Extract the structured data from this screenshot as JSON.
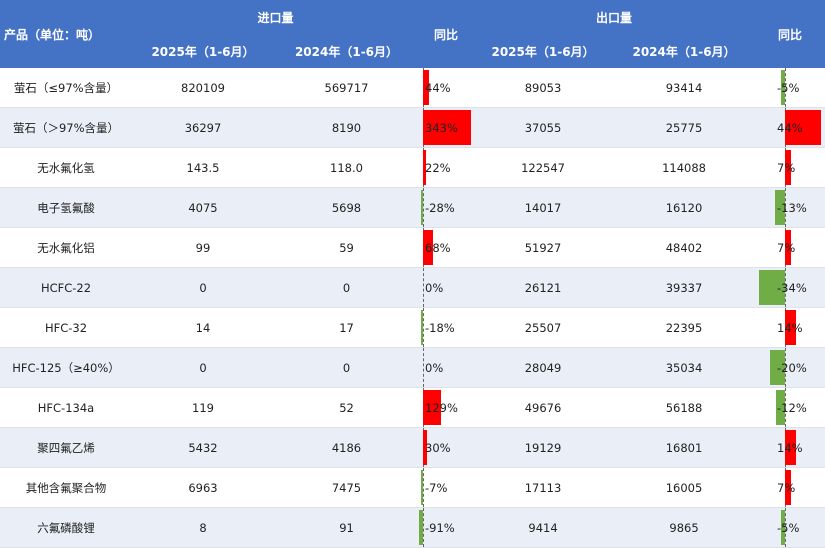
{
  "header": {
    "product_label": "产品（单位：吨）",
    "import_group": "进口量",
    "export_group": "出口量",
    "yoy_label": "同比",
    "year_2025": "2025年（1-6月）",
    "year_2024": "2024年（1-6月）"
  },
  "colors": {
    "header_bg": "#4472C4",
    "alt_row": "#E9EEF7",
    "positive": "#FF0000",
    "negative": "#70AD47"
  },
  "rows": [
    {
      "product": "萤石（≤97%含量）",
      "imp2025": "820109",
      "imp2024": "569717",
      "imp_yoy": "44%",
      "imp_yoy_value": 44,
      "exp2025": "89053",
      "exp2024": "93414",
      "exp_yoy": "-5%",
      "exp_yoy_value": -5
    },
    {
      "product": "萤石（＞97%含量）",
      "imp2025": "36297",
      "imp2024": "8190",
      "imp_yoy": "343%",
      "imp_yoy_value": 343,
      "exp2025": "37055",
      "exp2024": "25775",
      "exp_yoy": "44%",
      "exp_yoy_value": 44
    },
    {
      "product": "无水氟化氢",
      "imp2025": "143.5",
      "imp2024": "118.0",
      "imp_yoy": "22%",
      "imp_yoy_value": 22,
      "exp2025": "122547",
      "exp2024": "114088",
      "exp_yoy": "7%",
      "exp_yoy_value": 7
    },
    {
      "product": "电子氢氟酸",
      "imp2025": "4075",
      "imp2024": "5698",
      "imp_yoy": "-28%",
      "imp_yoy_value": -28,
      "exp2025": "14017",
      "exp2024": "16120",
      "exp_yoy": "-13%",
      "exp_yoy_value": -13
    },
    {
      "product": "无水氟化铝",
      "imp2025": "99",
      "imp2024": "59",
      "imp_yoy": "68%",
      "imp_yoy_value": 68,
      "exp2025": "51927",
      "exp2024": "48402",
      "exp_yoy": "7%",
      "exp_yoy_value": 7
    },
    {
      "product": "HCFC-22",
      "imp2025": "0",
      "imp2024": "0",
      "imp_yoy": "0%",
      "imp_yoy_value": 0,
      "exp2025": "26121",
      "exp2024": "39337",
      "exp_yoy": "-34%",
      "exp_yoy_value": -34
    },
    {
      "product": "HFC-32",
      "imp2025": "14",
      "imp2024": "17",
      "imp_yoy": "-18%",
      "imp_yoy_value": -18,
      "exp2025": "25507",
      "exp2024": "22395",
      "exp_yoy": "14%",
      "exp_yoy_value": 14
    },
    {
      "product": "HFC-125（≥40%）",
      "imp2025": "0",
      "imp2024": "0",
      "imp_yoy": "0%",
      "imp_yoy_value": 0,
      "exp2025": "28049",
      "exp2024": "35034",
      "exp_yoy": "-20%",
      "exp_yoy_value": -20
    },
    {
      "product": "HFC-134a",
      "imp2025": "119",
      "imp2024": "52",
      "imp_yoy": "129%",
      "imp_yoy_value": 129,
      "exp2025": "49676",
      "exp2024": "56188",
      "exp_yoy": "-12%",
      "exp_yoy_value": -12
    },
    {
      "product": "聚四氟乙烯",
      "imp2025": "5432",
      "imp2024": "4186",
      "imp_yoy": "30%",
      "imp_yoy_value": 30,
      "exp2025": "19129",
      "exp2024": "16801",
      "exp_yoy": "14%",
      "exp_yoy_value": 14
    },
    {
      "product": "其他含氟聚合物",
      "imp2025": "6963",
      "imp2024": "7475",
      "imp_yoy": "-7%",
      "imp_yoy_value": -7,
      "exp2025": "17113",
      "exp2024": "16005",
      "exp_yoy": "7%",
      "exp_yoy_value": 7
    },
    {
      "product": "六氟磷酸锂",
      "imp2025": "8",
      "imp2024": "91",
      "imp_yoy": "-91%",
      "imp_yoy_value": -91,
      "exp2025": "9414",
      "exp2024": "9865",
      "exp_yoy": "-5%",
      "exp_yoy_value": -5
    }
  ]
}
